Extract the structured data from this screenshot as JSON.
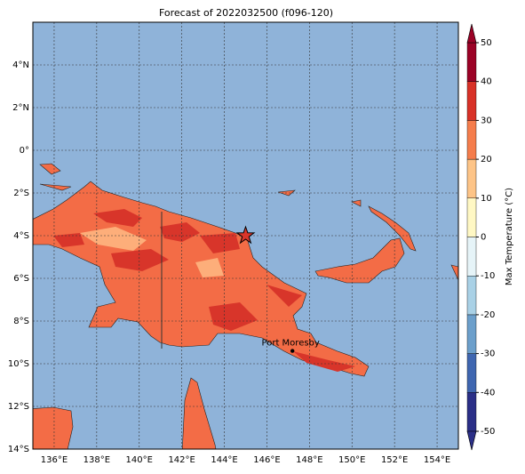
{
  "map": {
    "title": "Forecast of 2022032500 (f096-120)",
    "xlim": [
      135,
      155
    ],
    "ylim": [
      -14,
      6
    ],
    "xticks": [
      {
        "value": 136,
        "label": "136°E"
      },
      {
        "value": 138,
        "label": "138°E"
      },
      {
        "value": 140,
        "label": "140°E"
      },
      {
        "value": 142,
        "label": "142°E"
      },
      {
        "value": 144,
        "label": "144°E"
      },
      {
        "value": 146,
        "label": "146°E"
      },
      {
        "value": 148,
        "label": "148°E"
      },
      {
        "value": 150,
        "label": "150°E"
      },
      {
        "value": 152,
        "label": "152°E"
      },
      {
        "value": 154,
        "label": "154°E"
      }
    ],
    "yticks": [
      {
        "value": -14,
        "label": "14°S"
      },
      {
        "value": -12,
        "label": "12°S"
      },
      {
        "value": -10,
        "label": "10°S"
      },
      {
        "value": -8,
        "label": "8°S"
      },
      {
        "value": -6,
        "label": "6°S"
      },
      {
        "value": -4,
        "label": "4°S"
      },
      {
        "value": -2,
        "label": "2°S"
      },
      {
        "value": 0,
        "label": "0°"
      },
      {
        "value": 2,
        "label": "2°N"
      },
      {
        "value": 4,
        "label": "4°N"
      }
    ],
    "grid": true,
    "place": {
      "name": "Port Moresby",
      "lon": 147.2,
      "lat": -9.4
    },
    "star": {
      "lon": 145,
      "lat": -4
    },
    "colorbar": {
      "label": "Max Temperature (°C)",
      "lim": [
        -50,
        50
      ],
      "ticks": [
        -50,
        -40,
        -30,
        -20,
        -10,
        0,
        10,
        20,
        30,
        40,
        50
      ],
      "colors": [
        "#2b2f87",
        "#3f66b0",
        "#6c9fcb",
        "#a9d1e6",
        "#e6f4f8",
        "#fff8c4",
        "#fdc487",
        "#f57d4c",
        "#d83127",
        "#9b0226"
      ]
    }
  }
}
